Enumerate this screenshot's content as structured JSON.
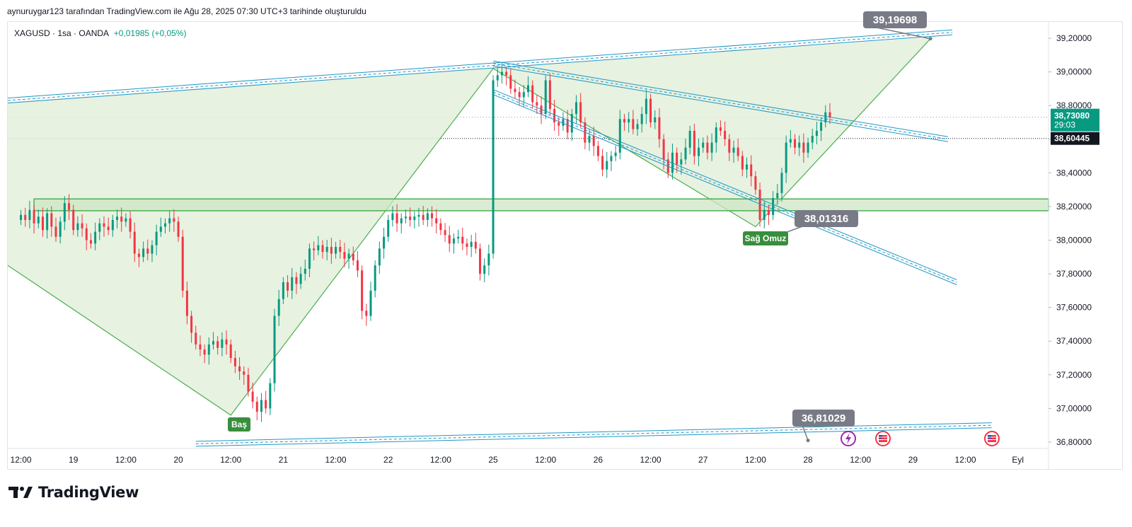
{
  "header": {
    "caption": "aynuruygar123 tarafından TradingView.com ile Ağu 28, 2025 07:30 UTC+3 tarihinde oluşturuldu"
  },
  "legend": {
    "symbol": "XAGUSD · 1sa · OANDA",
    "change": "+0,01985 (+0,05%)"
  },
  "brand": {
    "name": "TradingView"
  },
  "colors": {
    "up": "#089981",
    "down": "#f23645",
    "pattern_fill": "#e3f0dc",
    "pattern_line": "#4caf50",
    "channel": "#2196c4",
    "label_gray": "#787b86",
    "price_tag": "#089981"
  },
  "chart_data": {
    "type": "candlestick",
    "title": "XAGUSD · 1sa · OANDA",
    "ylim": [
      36.7,
      39.3
    ],
    "y_ticks": [
      "39,20000",
      "39,00000",
      "38,80000",
      "38,60000",
      "38,40000",
      "38,20000",
      "38,00000",
      "37,80000",
      "37,60000",
      "37,40000",
      "37,20000",
      "37,00000",
      "36,80000"
    ],
    "x_ticks": [
      "12:00",
      "19",
      "12:00",
      "20",
      "12:00",
      "21",
      "12:00",
      "22",
      "12:00",
      "25",
      "12:00",
      "26",
      "12:00",
      "27",
      "12:00",
      "28",
      "12:00",
      "29",
      "12:00",
      "Eyl"
    ],
    "x_tick_hours": [
      0,
      12,
      24,
      36,
      48,
      60,
      72,
      84,
      96,
      108,
      120,
      132,
      144,
      156,
      168,
      180,
      192,
      204,
      216,
      228
    ],
    "x_range_hours": [
      -3,
      235
    ],
    "candles_close": [
      38.15,
      38.12,
      38.18,
      38.1,
      38.14,
      38.06,
      38.16,
      38.08,
      38.02,
      38.11,
      38.22,
      38.18,
      38.06,
      38.1,
      38.07,
      38.0,
      37.98,
      38.05,
      38.1,
      38.08,
      38.06,
      38.12,
      38.14,
      38.11,
      38.13,
      38.05,
      37.92,
      37.9,
      37.95,
      37.92,
      37.97,
      38.05,
      38.08,
      38.1,
      38.13,
      38.11,
      38.02,
      37.7,
      37.55,
      37.45,
      37.38,
      37.35,
      37.32,
      37.38,
      37.4,
      37.36,
      37.41,
      37.38,
      37.3,
      37.25,
      37.22,
      37.2,
      37.1,
      37.04,
      36.98,
      37.05,
      37.0,
      37.15,
      37.55,
      37.65,
      37.75,
      37.7,
      37.78,
      37.74,
      37.8,
      37.83,
      37.95,
      37.94,
      37.97,
      37.93,
      37.96,
      37.92,
      37.96,
      37.93,
      37.89,
      37.92,
      37.88,
      37.82,
      37.58,
      37.55,
      37.7,
      37.85,
      37.95,
      38.02,
      38.12,
      38.16,
      38.1,
      38.13,
      38.14,
      38.12,
      38.14,
      38.15,
      38.12,
      38.16,
      38.13,
      38.1,
      38.06,
      38.03,
      37.98,
      38.01,
      38.02,
      37.98,
      37.96,
      37.99,
      37.95,
      37.8,
      37.85,
      37.92,
      38.95,
      38.98,
      39.0,
      38.98,
      38.9,
      38.88,
      38.85,
      38.88,
      38.92,
      38.82,
      38.8,
      38.75,
      38.95,
      38.78,
      38.7,
      38.68,
      38.72,
      38.64,
      38.75,
      38.82,
      38.7,
      38.58,
      38.62,
      38.56,
      38.5,
      38.42,
      38.47,
      38.5,
      38.52,
      38.72,
      38.7,
      38.72,
      38.66,
      38.69,
      38.75,
      38.84,
      38.7,
      38.73,
      38.6,
      38.48,
      38.4,
      38.52,
      38.45,
      38.48,
      38.55,
      38.65,
      38.5,
      38.55,
      38.58,
      38.52,
      38.58,
      38.67,
      38.65,
      38.6,
      38.52,
      38.55,
      38.5,
      38.42,
      38.45,
      38.38,
      38.3,
      38.12,
      38.18,
      38.15,
      38.25,
      38.28,
      38.4,
      38.58,
      38.6,
      38.55,
      38.58,
      38.52,
      38.58,
      38.62,
      38.65,
      38.7,
      38.76,
      38.73
    ],
    "annotations": {
      "head": "Baş",
      "right_shoulder": "Sağ Omuz",
      "callout_top": "39,19698",
      "callout_mid": "38,01316",
      "callout_low": "36,81029"
    },
    "price_tags": {
      "last": "38,73080",
      "countdown": "29:03",
      "secondary": "38,60445"
    },
    "support_zone": [
      38.175,
      38.245
    ]
  }
}
